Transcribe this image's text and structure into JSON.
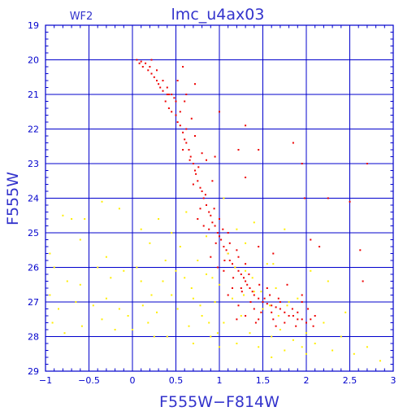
{
  "chart_data": {
    "type": "scatter",
    "title": "lmc_u4ax03",
    "subtitle": "WF2",
    "xlabel": "F555W−F814W",
    "ylabel": "F555W",
    "xlim": [
      -1,
      3
    ],
    "ylim": [
      29,
      19
    ],
    "y_inverted": true,
    "grid": true,
    "x_ticks": [
      -1,
      -0.5,
      0,
      0.5,
      1,
      1.5,
      2,
      2.5,
      3
    ],
    "x_tick_labels": [
      "−1",
      "−0.5",
      "0",
      "0.5",
      "1",
      "1.5",
      "2",
      "2.5",
      "3"
    ],
    "y_ticks": [
      19,
      20,
      21,
      22,
      23,
      24,
      25,
      26,
      27,
      28,
      29
    ],
    "y_tick_labels": [
      "19",
      "20",
      "21",
      "22",
      "23",
      "24",
      "25",
      "26",
      "27",
      "28",
      "29"
    ],
    "colors": {
      "axis": "#0000cc",
      "grid": "#0000cc",
      "title": "#3333cc",
      "red_series": "#ee0000",
      "yellow_series": "#ffee00"
    },
    "series": [
      {
        "color": "#ee0000",
        "points": [
          [
            0.05,
            20.0
          ],
          [
            0.1,
            20.05
          ],
          [
            0.08,
            20.1
          ],
          [
            0.12,
            20.2
          ],
          [
            0.15,
            20.1
          ],
          [
            0.18,
            20.3
          ],
          [
            0.2,
            20.2
          ],
          [
            0.22,
            20.4
          ],
          [
            0.25,
            20.5
          ],
          [
            0.28,
            20.6
          ],
          [
            0.3,
            20.7
          ],
          [
            0.32,
            20.8
          ],
          [
            0.35,
            20.9
          ],
          [
            0.4,
            21.0
          ],
          [
            0.45,
            21.0
          ],
          [
            0.48,
            21.1
          ],
          [
            0.38,
            21.2
          ],
          [
            0.42,
            21.4
          ],
          [
            0.45,
            21.5
          ],
          [
            0.5,
            21.6
          ],
          [
            0.52,
            21.8
          ],
          [
            0.55,
            21.9
          ],
          [
            0.58,
            22.1
          ],
          [
            0.6,
            22.3
          ],
          [
            0.62,
            22.4
          ],
          [
            0.65,
            22.6
          ],
          [
            0.67,
            22.8
          ],
          [
            0.7,
            23.0
          ],
          [
            0.72,
            23.2
          ],
          [
            0.73,
            23.3
          ],
          [
            0.75,
            23.5
          ],
          [
            0.78,
            23.7
          ],
          [
            0.8,
            23.8
          ],
          [
            0.82,
            24.0
          ],
          [
            0.85,
            24.2
          ],
          [
            0.88,
            24.4
          ],
          [
            0.9,
            24.5
          ],
          [
            0.92,
            24.7
          ],
          [
            0.95,
            24.8
          ],
          [
            0.98,
            25.0
          ],
          [
            1.0,
            25.1
          ],
          [
            1.02,
            25.2
          ],
          [
            1.05,
            25.4
          ],
          [
            1.08,
            25.5
          ],
          [
            1.1,
            25.6
          ],
          [
            1.12,
            25.8
          ],
          [
            1.15,
            25.9
          ],
          [
            1.18,
            26.0
          ],
          [
            1.22,
            26.1
          ],
          [
            1.25,
            26.2
          ],
          [
            1.28,
            26.3
          ],
          [
            1.3,
            26.4
          ],
          [
            1.32,
            26.5
          ],
          [
            1.35,
            26.6
          ],
          [
            1.38,
            26.7
          ],
          [
            1.4,
            26.8
          ],
          [
            1.45,
            26.9
          ],
          [
            1.5,
            27.0
          ],
          [
            1.55,
            27.05
          ],
          [
            1.6,
            27.1
          ],
          [
            1.65,
            27.15
          ],
          [
            1.7,
            27.2
          ],
          [
            1.75,
            27.3
          ],
          [
            1.8,
            27.4
          ],
          [
            1.85,
            27.4
          ],
          [
            1.9,
            27.5
          ],
          [
            1.95,
            27.5
          ],
          [
            2.0,
            27.6
          ],
          [
            2.05,
            27.5
          ],
          [
            2.1,
            27.4
          ],
          [
            0.62,
            22.0
          ],
          [
            0.58,
            22.6
          ],
          [
            0.66,
            22.9
          ],
          [
            0.76,
            23.1
          ],
          [
            0.7,
            23.6
          ],
          [
            0.84,
            23.9
          ],
          [
            0.78,
            24.3
          ],
          [
            0.94,
            24.3
          ],
          [
            0.88,
            24.9
          ],
          [
            1.04,
            24.9
          ],
          [
            0.96,
            25.3
          ],
          [
            1.12,
            25.3
          ],
          [
            1.06,
            25.8
          ],
          [
            1.22,
            25.7
          ],
          [
            1.16,
            26.3
          ],
          [
            1.34,
            26.2
          ],
          [
            1.26,
            26.7
          ],
          [
            1.46,
            26.5
          ],
          [
            1.36,
            27.0
          ],
          [
            1.58,
            26.8
          ],
          [
            1.48,
            27.3
          ],
          [
            1.7,
            27.0
          ],
          [
            1.62,
            27.5
          ],
          [
            1.84,
            27.2
          ],
          [
            1.3,
            27.4
          ],
          [
            1.2,
            27.5
          ],
          [
            1.42,
            27.6
          ],
          [
            1.75,
            27.6
          ],
          [
            1.9,
            27.3
          ],
          [
            1.55,
            26.6
          ],
          [
            0.5,
            21.2
          ],
          [
            0.42,
            21.0
          ],
          [
            0.55,
            21.5
          ],
          [
            0.35,
            20.6
          ],
          [
            0.28,
            20.3
          ],
          [
            0.4,
            20.8
          ],
          [
            1.0,
            24.6
          ],
          [
            1.1,
            25.0
          ],
          [
            1.2,
            25.5
          ],
          [
            1.3,
            25.9
          ],
          [
            0.92,
            23.5
          ],
          [
            0.85,
            22.9
          ],
          [
            0.95,
            22.8
          ],
          [
            1.25,
            26.6
          ],
          [
            1.4,
            27.2
          ],
          [
            1.6,
            27.3
          ],
          [
            1.68,
            26.9
          ],
          [
            1.52,
            26.9
          ],
          [
            1.05,
            26.1
          ],
          [
            1.15,
            26.6
          ],
          [
            0.98,
            26.0
          ],
          [
            0.9,
            25.7
          ],
          [
            1.45,
            27.5
          ],
          [
            1.65,
            27.7
          ],
          [
            0.6,
            21.2
          ],
          [
            0.72,
            22.2
          ],
          [
            0.8,
            22.7
          ],
          [
            0.68,
            21.7
          ],
          [
            0.75,
            24.6
          ],
          [
            0.82,
            24.8
          ],
          [
            1.95,
            27.0
          ],
          [
            2.02,
            27.2
          ],
          [
            2.08,
            27.7
          ],
          [
            1.88,
            27.7
          ],
          [
            1.1,
            26.8
          ],
          [
            1.22,
            27.1
          ],
          [
            0.52,
            20.6
          ],
          [
            0.62,
            21.0
          ],
          [
            0.22,
            20.0
          ],
          [
            0.58,
            20.2
          ],
          [
            0.72,
            20.7
          ],
          [
            1.0,
            21.5
          ],
          [
            1.3,
            21.9
          ],
          [
            1.22,
            22.6
          ],
          [
            1.3,
            23.4
          ],
          [
            1.45,
            22.6
          ],
          [
            1.85,
            22.4
          ],
          [
            1.95,
            23.0
          ],
          [
            2.05,
            25.2
          ],
          [
            2.15,
            25.4
          ],
          [
            2.5,
            24.1
          ],
          [
            2.65,
            26.4
          ],
          [
            2.62,
            25.5
          ],
          [
            2.7,
            23.0
          ],
          [
            2.25,
            24.0
          ],
          [
            1.98,
            24.0
          ],
          [
            1.95,
            26.8
          ],
          [
            1.45,
            25.4
          ],
          [
            1.62,
            25.6
          ],
          [
            1.78,
            26.5
          ]
        ]
      },
      {
        "color": "#ffee00",
        "points": [
          [
            -0.95,
            25.6
          ],
          [
            -0.8,
            24.5
          ],
          [
            -0.7,
            24.6
          ],
          [
            -0.55,
            24.6
          ],
          [
            -0.35,
            24.1
          ],
          [
            -0.15,
            24.3
          ],
          [
            -0.9,
            26.0
          ],
          [
            -0.75,
            26.4
          ],
          [
            -0.6,
            26.5
          ],
          [
            -0.4,
            26.0
          ],
          [
            -0.25,
            26.3
          ],
          [
            -0.1,
            26.1
          ],
          [
            -0.95,
            26.8
          ],
          [
            -0.85,
            27.2
          ],
          [
            -0.65,
            27.0
          ],
          [
            -0.45,
            27.1
          ],
          [
            -0.3,
            26.9
          ],
          [
            -0.15,
            27.2
          ],
          [
            -0.92,
            27.6
          ],
          [
            -0.78,
            27.9
          ],
          [
            -0.58,
            27.7
          ],
          [
            -0.35,
            27.5
          ],
          [
            -0.2,
            27.8
          ],
          [
            -0.05,
            27.4
          ],
          [
            0.05,
            26.0
          ],
          [
            0.1,
            26.4
          ],
          [
            0.12,
            27.1
          ],
          [
            0.18,
            27.6
          ],
          [
            0.22,
            26.8
          ],
          [
            0.28,
            27.3
          ],
          [
            0.25,
            28.0
          ],
          [
            0.35,
            26.4
          ],
          [
            0.38,
            25.8
          ],
          [
            0.45,
            26.8
          ],
          [
            0.52,
            27.2
          ],
          [
            0.55,
            25.4
          ],
          [
            0.6,
            26.3
          ],
          [
            0.65,
            27.7
          ],
          [
            0.7,
            26.9
          ],
          [
            0.75,
            25.8
          ],
          [
            0.8,
            27.4
          ],
          [
            0.85,
            26.2
          ],
          [
            0.9,
            28.0
          ],
          [
            0.95,
            27.0
          ],
          [
            1.0,
            26.5
          ],
          [
            1.05,
            27.6
          ],
          [
            1.1,
            25.6
          ],
          [
            1.15,
            26.9
          ],
          [
            1.2,
            28.2
          ],
          [
            1.25,
            27.4
          ],
          [
            1.3,
            26.1
          ],
          [
            1.35,
            27.9
          ],
          [
            1.4,
            26.7
          ],
          [
            1.45,
            28.3
          ],
          [
            1.5,
            27.2
          ],
          [
            1.55,
            25.9
          ],
          [
            1.6,
            28.0
          ],
          [
            1.65,
            26.6
          ],
          [
            1.7,
            27.8
          ],
          [
            1.75,
            28.4
          ],
          [
            1.8,
            27.0
          ],
          [
            1.85,
            28.1
          ],
          [
            1.9,
            26.9
          ],
          [
            1.95,
            28.3
          ],
          [
            2.0,
            27.9
          ],
          [
            2.1,
            28.2
          ],
          [
            2.2,
            27.6
          ],
          [
            2.3,
            28.4
          ],
          [
            2.4,
            28.0
          ],
          [
            2.55,
            28.5
          ],
          [
            2.7,
            28.3
          ],
          [
            2.85,
            28.7
          ],
          [
            0.3,
            24.6
          ],
          [
            0.45,
            25.0
          ],
          [
            0.62,
            24.4
          ],
          [
            0.85,
            25.1
          ],
          [
            1.05,
            24.0
          ],
          [
            1.3,
            25.3
          ],
          [
            1.4,
            24.7
          ],
          [
            1.62,
            25.9
          ],
          [
            1.75,
            24.9
          ],
          [
            2.05,
            26.1
          ],
          [
            2.25,
            26.4
          ],
          [
            2.45,
            27.3
          ],
          [
            0.1,
            24.9
          ],
          [
            -0.6,
            25.2
          ],
          [
            -0.3,
            25.7
          ],
          [
            0.0,
            27.8
          ],
          [
            0.4,
            28.0
          ],
          [
            0.7,
            28.2
          ],
          [
            1.0,
            28.3
          ],
          [
            1.6,
            28.6
          ],
          [
            2.0,
            28.5
          ],
          [
            1.2,
            24.9
          ],
          [
            0.92,
            26.3
          ],
          [
            1.18,
            26.0
          ],
          [
            1.28,
            26.8
          ],
          [
            1.38,
            26.3
          ],
          [
            1.48,
            26.7
          ],
          [
            1.58,
            27.1
          ],
          [
            1.68,
            27.4
          ],
          [
            1.78,
            27.1
          ],
          [
            0.2,
            25.3
          ],
          [
            0.5,
            26.1
          ],
          [
            0.68,
            26.6
          ],
          [
            0.78,
            27.1
          ],
          [
            0.88,
            27.6
          ],
          [
            0.98,
            27.9
          ]
        ]
      }
    ]
  }
}
